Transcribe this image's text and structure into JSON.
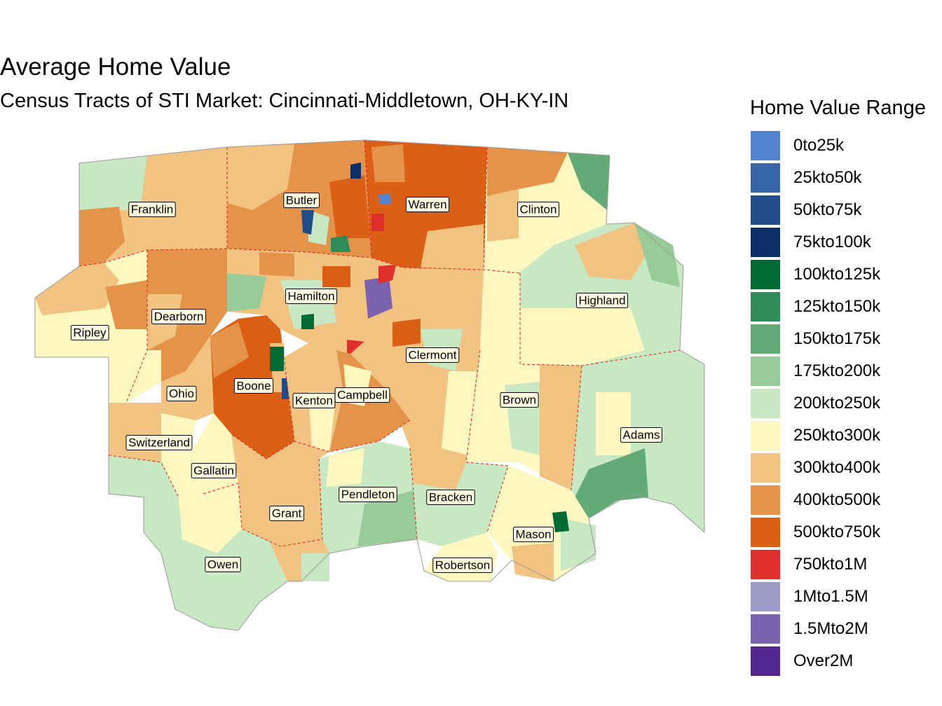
{
  "title": "Average Home Value",
  "subtitle": "Census Tracts of STI Market: Cincinnati-Middletown, OH-KY-IN",
  "legend": {
    "title": "Home Value Range",
    "items": [
      {
        "label": "0to25k",
        "color": "#5183cf"
      },
      {
        "label": "25kto50k",
        "color": "#3765a8"
      },
      {
        "label": "50kto75k",
        "color": "#214c8a"
      },
      {
        "label": "75kto100k",
        "color": "#0c2f69"
      },
      {
        "label": "100kto125k",
        "color": "#006b33"
      },
      {
        "label": "125kto150k",
        "color": "#2f8c57"
      },
      {
        "label": "150kto175k",
        "color": "#62ab77"
      },
      {
        "label": "175kto200k",
        "color": "#98cb9a"
      },
      {
        "label": "200kto250k",
        "color": "#c8e8c3"
      },
      {
        "label": "250kto300k",
        "color": "#fef8c0"
      },
      {
        "label": "300kto400k",
        "color": "#f2c280"
      },
      {
        "label": "400kto500k",
        "color": "#e6934a"
      },
      {
        "label": "500kto750k",
        "color": "#db5f14"
      },
      {
        "label": "750kto1M",
        "color": "#df2f2c"
      },
      {
        "label": "1Mto1.5M",
        "color": "#9e9ac8"
      },
      {
        "label": "1.5Mto2M",
        "color": "#7a62af"
      },
      {
        "label": "Over2M",
        "color": "#54278f"
      }
    ]
  },
  "counties": [
    {
      "id": "franklin",
      "name": "Franklin"
    },
    {
      "id": "butler",
      "name": "Butler"
    },
    {
      "id": "warren",
      "name": "Warren"
    },
    {
      "id": "clinton",
      "name": "Clinton"
    },
    {
      "id": "highland",
      "name": "Highland"
    },
    {
      "id": "hamilton",
      "name": "Hamilton"
    },
    {
      "id": "dearborn",
      "name": "Dearborn"
    },
    {
      "id": "ripley",
      "name": "Ripley"
    },
    {
      "id": "clermont",
      "name": "Clermont"
    },
    {
      "id": "boone",
      "name": "Boone"
    },
    {
      "id": "ohio",
      "name": "Ohio"
    },
    {
      "id": "kenton",
      "name": "Kenton"
    },
    {
      "id": "campbell",
      "name": "Campbell"
    },
    {
      "id": "brown",
      "name": "Brown"
    },
    {
      "id": "adams",
      "name": "Adams"
    },
    {
      "id": "switzerland",
      "name": "Switzerland"
    },
    {
      "id": "gallatin",
      "name": "Gallatin"
    },
    {
      "id": "pendleton",
      "name": "Pendleton"
    },
    {
      "id": "bracken",
      "name": "Bracken"
    },
    {
      "id": "grant",
      "name": "Grant"
    },
    {
      "id": "mason",
      "name": "Mason"
    },
    {
      "id": "owen",
      "name": "Owen"
    },
    {
      "id": "robertson",
      "name": "Robertson"
    }
  ]
}
